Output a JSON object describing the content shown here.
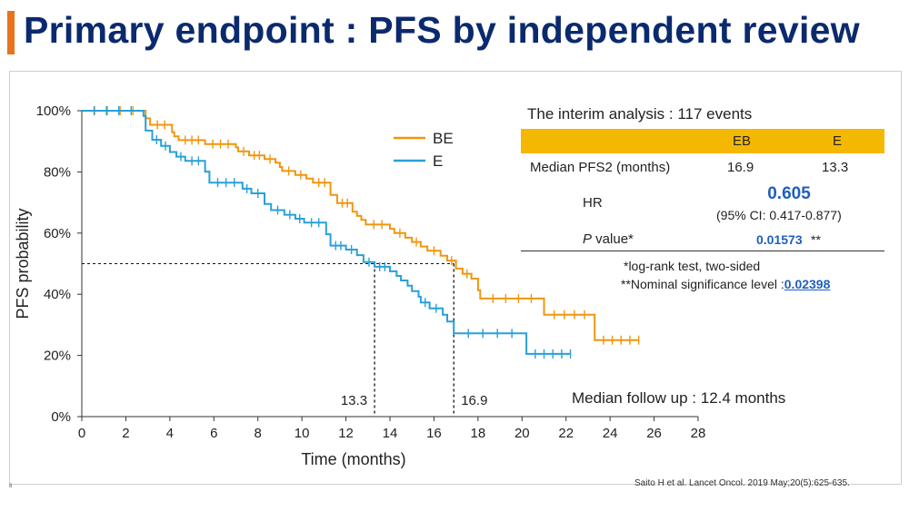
{
  "slide": {
    "title": "Primary endpoint : PFS by independent review",
    "accent_color": "#e8731c",
    "title_color": "#0b2a6e",
    "citation": "Saito H et al. Lancet Oncol. 2019 May;20(5):625-635.",
    "page_marker": "8"
  },
  "summary": {
    "interim": "The interim analysis : 117 events",
    "header_color": "#f5b800",
    "col_eb": "EB",
    "col_e": "E",
    "median_label": "Median PFS2 (months)",
    "median_eb": "16.9",
    "median_e": "13.3",
    "hr_label": "HR",
    "hr_value": "0.605",
    "hr_ci": "(95% CI: 0.417-0.877)",
    "p_label_italic": "P",
    "p_label_rest": " value*",
    "p_value": "0.01573",
    "p_stars": "**",
    "highlight_color": "#1f5fbf",
    "footnote1": "*log-rank test, two-sided",
    "footnote2": "**Nominal significance level : ",
    "nominal_level": "0.02398",
    "followup": "Median follow up : 12.4 months"
  },
  "chart_data": {
    "type": "line",
    "title": "",
    "xlabel": "Time (months)",
    "ylabel": "PFS probability",
    "xlim": [
      0,
      28
    ],
    "ylim": [
      0,
      100
    ],
    "xticks": [
      0,
      2,
      4,
      6,
      8,
      10,
      12,
      14,
      16,
      18,
      20,
      22,
      24,
      26,
      28
    ],
    "yticks": [
      0,
      20,
      40,
      60,
      80,
      100
    ],
    "ytick_labels": [
      "0%",
      "20%",
      "40%",
      "60%",
      "80%",
      "100%"
    ],
    "legend_position": "top-center",
    "median_line_y": 50,
    "median_markers": [
      {
        "label": "13.3",
        "x": 13.3
      },
      {
        "label": "16.9",
        "x": 16.9
      }
    ],
    "series": [
      {
        "name": "BE",
        "color": "#f0960f",
        "steps": [
          [
            0,
            100
          ],
          [
            2.9,
            100
          ],
          [
            2.9,
            97.5
          ],
          [
            3.1,
            97.5
          ],
          [
            3.1,
            95.4
          ],
          [
            4.1,
            95.4
          ],
          [
            4.1,
            93
          ],
          [
            4.2,
            93
          ],
          [
            4.2,
            91.6
          ],
          [
            4.4,
            91.6
          ],
          [
            4.4,
            90.4
          ],
          [
            5.6,
            90.4
          ],
          [
            5.6,
            89.1
          ],
          [
            7.0,
            89.1
          ],
          [
            7.0,
            88
          ],
          [
            7.1,
            88
          ],
          [
            7.1,
            86.7
          ],
          [
            7.6,
            86.7
          ],
          [
            7.6,
            85.4
          ],
          [
            8.3,
            85.4
          ],
          [
            8.3,
            84.2
          ],
          [
            8.8,
            84.2
          ],
          [
            8.8,
            83
          ],
          [
            9.0,
            83
          ],
          [
            9.0,
            81.6
          ],
          [
            9.1,
            81.6
          ],
          [
            9.1,
            80.3
          ],
          [
            9.7,
            80.3
          ],
          [
            9.7,
            79
          ],
          [
            10.2,
            79
          ],
          [
            10.2,
            77.8
          ],
          [
            10.5,
            77.8
          ],
          [
            10.5,
            76.5
          ],
          [
            11.3,
            76.5
          ],
          [
            11.3,
            72.5
          ],
          [
            11.6,
            72.5
          ],
          [
            11.6,
            69.8
          ],
          [
            12.3,
            69.8
          ],
          [
            12.3,
            67
          ],
          [
            12.5,
            67
          ],
          [
            12.5,
            65.6
          ],
          [
            12.7,
            65.6
          ],
          [
            12.7,
            64.3
          ],
          [
            12.9,
            64.3
          ],
          [
            12.9,
            62.8
          ],
          [
            14.0,
            62.8
          ],
          [
            14.0,
            61.4
          ],
          [
            14.2,
            61.4
          ],
          [
            14.2,
            60
          ],
          [
            14.7,
            60
          ],
          [
            14.7,
            58.5
          ],
          [
            15.0,
            58.5
          ],
          [
            15.0,
            57.1
          ],
          [
            15.4,
            57.1
          ],
          [
            15.4,
            55.6
          ],
          [
            15.7,
            55.6
          ],
          [
            15.7,
            54.2
          ],
          [
            16.3,
            54.2
          ],
          [
            16.3,
            52.6
          ],
          [
            16.6,
            52.6
          ],
          [
            16.6,
            51
          ],
          [
            17.0,
            51
          ],
          [
            17.0,
            48.4
          ],
          [
            17.3,
            48.4
          ],
          [
            17.3,
            46.7
          ],
          [
            17.7,
            46.7
          ],
          [
            17.7,
            45.1
          ],
          [
            18.0,
            45.1
          ],
          [
            18.0,
            41.3
          ],
          [
            18.1,
            41.3
          ],
          [
            18.1,
            38.6
          ],
          [
            21.0,
            38.6
          ],
          [
            21.0,
            33.3
          ],
          [
            23.3,
            33.3
          ],
          [
            23.3,
            25
          ],
          [
            25.3,
            25
          ]
        ]
      },
      {
        "name": "E",
        "color": "#28a0d8",
        "steps": [
          [
            0,
            100
          ],
          [
            2.8,
            100
          ],
          [
            2.8,
            98.3
          ],
          [
            2.9,
            98.3
          ],
          [
            2.9,
            93.5
          ],
          [
            3.2,
            93.5
          ],
          [
            3.2,
            90.5
          ],
          [
            3.6,
            90.5
          ],
          [
            3.6,
            88.5
          ],
          [
            4.0,
            88.5
          ],
          [
            4.0,
            86.5
          ],
          [
            4.3,
            86.5
          ],
          [
            4.3,
            85.0
          ],
          [
            4.7,
            85.0
          ],
          [
            4.7,
            83.6
          ],
          [
            5.6,
            83.6
          ],
          [
            5.6,
            80.1
          ],
          [
            5.8,
            80.1
          ],
          [
            5.8,
            76.5
          ],
          [
            7.3,
            76.5
          ],
          [
            7.3,
            74.5
          ],
          [
            7.7,
            74.5
          ],
          [
            7.7,
            73
          ],
          [
            8.3,
            73
          ],
          [
            8.3,
            69.5
          ],
          [
            8.6,
            69.5
          ],
          [
            8.6,
            67.5
          ],
          [
            9.2,
            67.5
          ],
          [
            9.2,
            66
          ],
          [
            9.7,
            66
          ],
          [
            9.7,
            64.7
          ],
          [
            10.1,
            64.7
          ],
          [
            10.1,
            63.4
          ],
          [
            11.1,
            63.4
          ],
          [
            11.1,
            59.6
          ],
          [
            11.3,
            59.6
          ],
          [
            11.3,
            55.9
          ],
          [
            12.0,
            55.9
          ],
          [
            12.0,
            54.6
          ],
          [
            12.5,
            54.6
          ],
          [
            12.5,
            52.8
          ],
          [
            12.8,
            52.8
          ],
          [
            12.8,
            50.5
          ],
          [
            13.3,
            50.5
          ],
          [
            13.3,
            49
          ],
          [
            14.0,
            49
          ],
          [
            14.0,
            47.5
          ],
          [
            14.3,
            47.5
          ],
          [
            14.3,
            46
          ],
          [
            14.5,
            46
          ],
          [
            14.5,
            44.5
          ],
          [
            14.8,
            44.5
          ],
          [
            14.8,
            42.8
          ],
          [
            15.0,
            42.8
          ],
          [
            15.0,
            41
          ],
          [
            15.3,
            41
          ],
          [
            15.3,
            39.2
          ],
          [
            15.4,
            39.2
          ],
          [
            15.4,
            37.3
          ],
          [
            15.8,
            37.3
          ],
          [
            15.8,
            35.4
          ],
          [
            16.4,
            35.4
          ],
          [
            16.4,
            33.3
          ],
          [
            16.6,
            33.3
          ],
          [
            16.6,
            31.1
          ],
          [
            16.9,
            31.1
          ],
          [
            16.9,
            27.2
          ],
          [
            20.2,
            27.2
          ],
          [
            20.2,
            20.5
          ],
          [
            22.2,
            20.5
          ]
        ]
      }
    ]
  }
}
